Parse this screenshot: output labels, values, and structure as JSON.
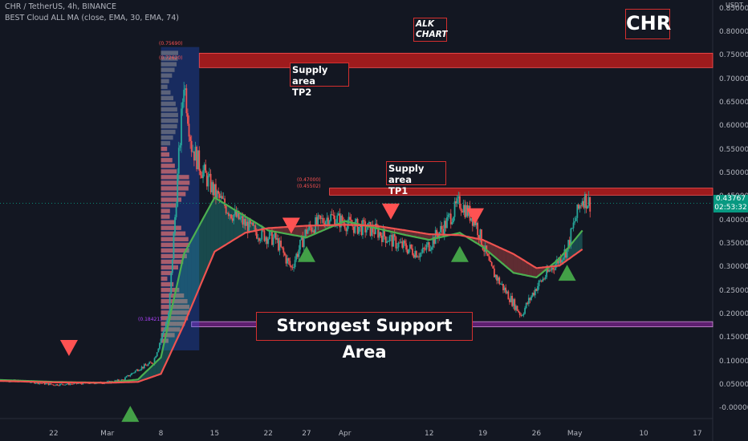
{
  "header": {
    "symbol": "CHR / TetherUS, 4h, BINANCE",
    "indicator": "BEST Cloud ALL MA (close, EMA, 30, EMA, 74)"
  },
  "colors": {
    "background": "#131722",
    "bull": "#26a69a",
    "bear": "#ef5350",
    "fast_ema": "#4caf50",
    "slow_ema": "#ef5350",
    "zone_red": "#b71c1c",
    "zone_purple": "#9c27b0",
    "box_border": "#d32f2f",
    "arrow_up": "#43a047",
    "arrow_down": "#ff5252",
    "price_tag": "#089981"
  },
  "annotations": {
    "tp2": [
      "Supply area",
      "TP2"
    ],
    "tp1": [
      "Supply area",
      "TP1"
    ],
    "support": "Strongest Support Area",
    "alk": [
      "ALK",
      "CHART"
    ],
    "chr": "CHR"
  },
  "zone_labels": {
    "tp2_top": "(0.75690)",
    "tp2_bottom": "(0.72620)",
    "tp1_top": "(0.47000)",
    "tp1_bottom": "(0.45502)",
    "support": "(0.18421)"
  },
  "price_tag": {
    "price": "0.43767",
    "countdown": "02:53:32"
  },
  "chart_data": {
    "type": "candlestick",
    "y_axis": {
      "ticks": [
        "-0.00000",
        "0.05000",
        "0.10000",
        "0.15000",
        "0.20000",
        "0.25000",
        "0.30000",
        "0.35000",
        "0.40000",
        "0.45000",
        "0.50000",
        "0.55000",
        "0.60000",
        "0.65000",
        "0.70000",
        "0.75000",
        "0.80000",
        "0.85000"
      ],
      "ylim": [
        -0.02,
        0.87
      ],
      "currency": "USDT",
      "position": "right"
    },
    "x_axis": {
      "ticks": [
        "22",
        "Mar",
        "8",
        "15",
        "22",
        "27",
        "Apr",
        "12",
        "19",
        "26",
        "May",
        "10",
        "17"
      ],
      "range": [
        "2021-02-15",
        "2021-05-19"
      ]
    },
    "series": [
      {
        "name": "EMA 30",
        "x": [
          "2021-02-15",
          "2021-02-22",
          "2021-03-01",
          "2021-03-05",
          "2021-03-08",
          "2021-03-11",
          "2021-03-15",
          "2021-03-19",
          "2021-03-22",
          "2021-03-27",
          "2021-04-01",
          "2021-04-05",
          "2021-04-09",
          "2021-04-12",
          "2021-04-16",
          "2021-04-19",
          "2021-04-23",
          "2021-04-26",
          "2021-04-29",
          "2021-05-02"
        ],
        "values": [
          0.062,
          0.058,
          0.056,
          0.063,
          0.11,
          0.33,
          0.45,
          0.41,
          0.38,
          0.365,
          0.4,
          0.385,
          0.37,
          0.36,
          0.375,
          0.345,
          0.29,
          0.28,
          0.32,
          0.38
        ]
      },
      {
        "name": "EMA 74",
        "x": [
          "2021-02-15",
          "2021-02-22",
          "2021-03-01",
          "2021-03-05",
          "2021-03-08",
          "2021-03-11",
          "2021-03-15",
          "2021-03-19",
          "2021-03-22",
          "2021-03-27",
          "2021-04-01",
          "2021-04-05",
          "2021-04-09",
          "2021-04-12",
          "2021-04-16",
          "2021-04-19",
          "2021-04-23",
          "2021-04-26",
          "2021-04-29",
          "2021-05-02"
        ],
        "values": [
          0.06,
          0.057,
          0.056,
          0.058,
          0.075,
          0.18,
          0.335,
          0.375,
          0.385,
          0.39,
          0.392,
          0.39,
          0.38,
          0.372,
          0.37,
          0.36,
          0.33,
          0.3,
          0.305,
          0.34
        ]
      }
    ],
    "price_path": {
      "x": [
        "2021-02-15",
        "2021-02-19",
        "2021-02-22",
        "2021-02-26",
        "2021-03-01",
        "2021-03-03",
        "2021-03-05",
        "2021-03-07",
        "2021-03-09",
        "2021-03-10",
        "2021-03-11",
        "2021-03-12",
        "2021-03-13",
        "2021-03-15",
        "2021-03-17",
        "2021-03-20",
        "2021-03-23",
        "2021-03-25",
        "2021-03-27",
        "2021-03-30",
        "2021-04-02",
        "2021-04-05",
        "2021-04-08",
        "2021-04-11",
        "2021-04-14",
        "2021-04-16",
        "2021-04-18",
        "2021-04-20",
        "2021-04-22",
        "2021-04-24",
        "2021-04-26",
        "2021-04-28",
        "2021-04-30",
        "2021-05-01",
        "2021-05-02",
        "2021-05-03"
      ],
      "values": [
        0.062,
        0.058,
        0.052,
        0.055,
        0.057,
        0.062,
        0.085,
        0.1,
        0.2,
        0.45,
        0.7,
        0.56,
        0.52,
        0.46,
        0.42,
        0.38,
        0.36,
        0.3,
        0.38,
        0.41,
        0.39,
        0.38,
        0.35,
        0.33,
        0.39,
        0.44,
        0.4,
        0.3,
        0.25,
        0.2,
        0.26,
        0.3,
        0.34,
        0.4,
        0.45,
        0.438
      ]
    },
    "zones": [
      {
        "label": "Supply area TP2",
        "from": 0.7262,
        "to": 0.7569
      },
      {
        "label": "Supply area TP1",
        "from": 0.45502,
        "to": 0.47
      },
      {
        "label": "Strongest Support Area",
        "from": 0.175,
        "to": 0.186
      }
    ],
    "signals": [
      {
        "type": "sell",
        "x": "2021-02-24",
        "price": 0.13
      },
      {
        "type": "buy",
        "x": "2021-03-04",
        "price": -0.01
      },
      {
        "type": "sell",
        "x": "2021-03-25",
        "price": 0.39
      },
      {
        "type": "buy",
        "x": "2021-03-27",
        "price": 0.33
      },
      {
        "type": "sell",
        "x": "2021-04-07",
        "price": 0.42
      },
      {
        "type": "buy",
        "x": "2021-04-16",
        "price": 0.33
      },
      {
        "type": "sell",
        "x": "2021-04-18",
        "price": 0.41
      },
      {
        "type": "buy",
        "x": "2021-04-30",
        "price": 0.29
      }
    ],
    "last_price": 0.43767,
    "grid": false,
    "legend": "top-left"
  }
}
